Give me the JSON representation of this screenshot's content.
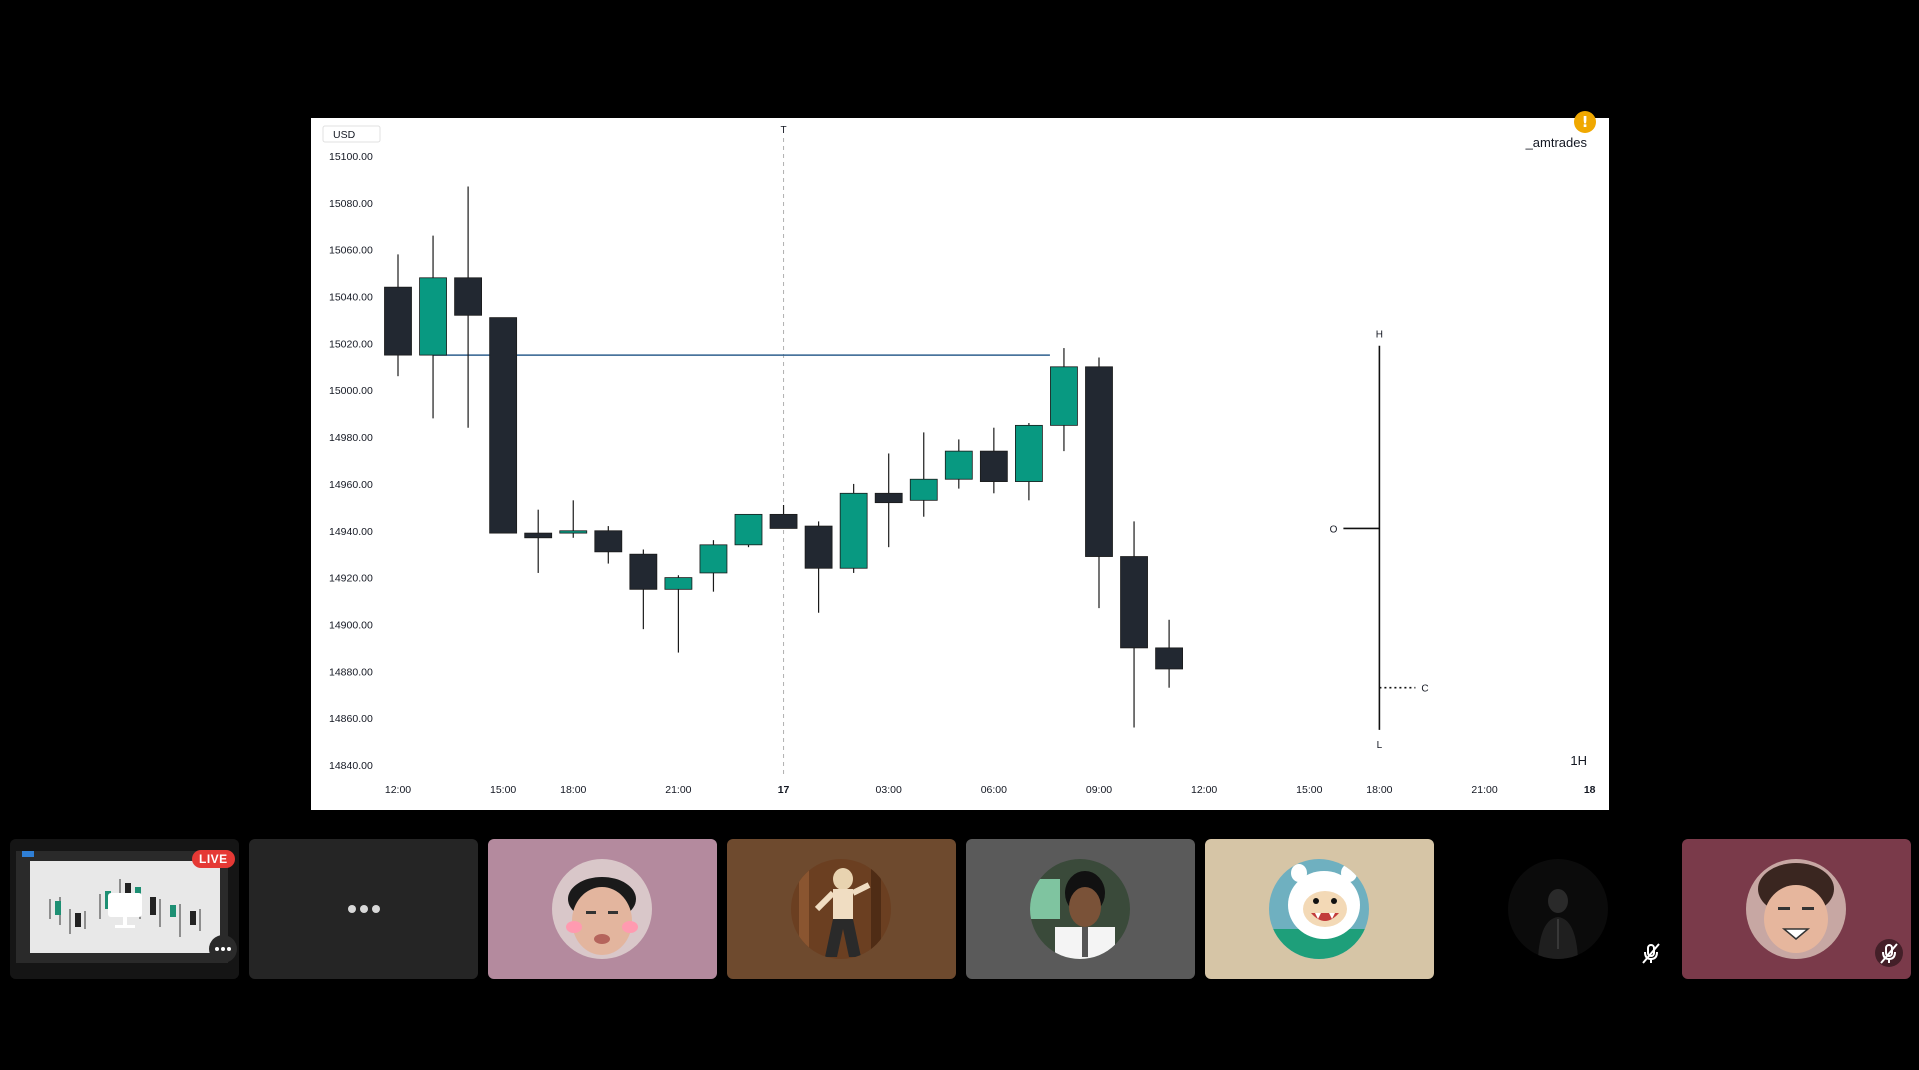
{
  "chart_data": {
    "type": "candlestick",
    "currency": "USD",
    "watermark": "_amtrades",
    "timeframe": "1H",
    "ylim": [
      14840,
      15100
    ],
    "yticks": [
      "15100.00",
      "15080.00",
      "15060.00",
      "15040.00",
      "15020.00",
      "15000.00",
      "14980.00",
      "14960.00",
      "14940.00",
      "14920.00",
      "14900.00",
      "14880.00",
      "14860.00",
      "14840.00"
    ],
    "xticks": [
      {
        "label": "12:00",
        "t": 0,
        "bold": false
      },
      {
        "label": "15:00",
        "t": 3,
        "bold": false
      },
      {
        "label": "18:00",
        "t": 5,
        "bold": false
      },
      {
        "label": "21:00",
        "t": 8,
        "bold": false
      },
      {
        "label": "17",
        "t": 11,
        "bold": true
      },
      {
        "label": "03:00",
        "t": 14,
        "bold": false
      },
      {
        "label": "06:00",
        "t": 17,
        "bold": false
      },
      {
        "label": "09:00",
        "t": 20,
        "bold": false
      },
      {
        "label": "12:00",
        "t": 23,
        "bold": false
      },
      {
        "label": "15:00",
        "t": 26,
        "bold": false
      },
      {
        "label": "18:00",
        "t": 28,
        "bold": false
      },
      {
        "label": "21:00",
        "t": 31,
        "bold": false
      },
      {
        "label": "18",
        "t": 34,
        "bold": true
      }
    ],
    "ohlc": [
      {
        "t": 0,
        "o": 15044,
        "h": 15058,
        "l": 15006,
        "c": 15015
      },
      {
        "t": 1,
        "o": 15015,
        "h": 15066,
        "l": 14988,
        "c": 15048
      },
      {
        "t": 2,
        "o": 15048,
        "h": 15087,
        "l": 14984,
        "c": 15032
      },
      {
        "t": 3,
        "o": 15031,
        "h": 15031,
        "l": 14939,
        "c": 14939
      },
      {
        "t": 4,
        "o": 14939,
        "h": 14949,
        "l": 14922,
        "c": 14937
      },
      {
        "t": 5,
        "o": 14939,
        "h": 14953,
        "l": 14937,
        "c": 14940
      },
      {
        "t": 6,
        "o": 14940,
        "h": 14942,
        "l": 14926,
        "c": 14931
      },
      {
        "t": 7,
        "o": 14930,
        "h": 14932,
        "l": 14898,
        "c": 14915
      },
      {
        "t": 8,
        "o": 14915,
        "h": 14921,
        "l": 14888,
        "c": 14920
      },
      {
        "t": 9,
        "o": 14922,
        "h": 14936,
        "l": 14914,
        "c": 14934
      },
      {
        "t": 10,
        "o": 14934,
        "h": 14947,
        "l": 14933,
        "c": 14947
      },
      {
        "t": 11,
        "o": 14947,
        "h": 14951,
        "l": 14941,
        "c": 14941
      },
      {
        "t": 12,
        "o": 14942,
        "h": 14944,
        "l": 14905,
        "c": 14924
      },
      {
        "t": 13,
        "o": 14924,
        "h": 14960,
        "l": 14922,
        "c": 14956
      },
      {
        "t": 14,
        "o": 14956,
        "h": 14973,
        "l": 14933,
        "c": 14952
      },
      {
        "t": 15,
        "o": 14953,
        "h": 14982,
        "l": 14946,
        "c": 14962
      },
      {
        "t": 16,
        "o": 14962,
        "h": 14979,
        "l": 14958,
        "c": 14974
      },
      {
        "t": 17,
        "o": 14974,
        "h": 14984,
        "l": 14956,
        "c": 14961
      },
      {
        "t": 18,
        "o": 14961,
        "h": 14986,
        "l": 14953,
        "c": 14985
      },
      {
        "t": 19,
        "o": 14985,
        "h": 15018,
        "l": 14974,
        "c": 15010
      },
      {
        "t": 20,
        "o": 15010,
        "h": 15014,
        "l": 14907,
        "c": 14929
      },
      {
        "t": 21,
        "o": 14929,
        "h": 14944,
        "l": 14856,
        "c": 14890
      },
      {
        "t": 22,
        "o": 14890,
        "h": 14902,
        "l": 14873,
        "c": 14881
      }
    ],
    "hline": {
      "value": 15015,
      "from_t": 1,
      "to_t": 18.6,
      "color": "#2e5f8e"
    },
    "vline": {
      "t": 11,
      "label": "T"
    },
    "range_marker": {
      "t": 28,
      "h": 15019,
      "o": 14941,
      "c": 14873,
      "l": 14855,
      "labels": {
        "h": "H",
        "o": "O",
        "c": "C",
        "l": "L"
      }
    },
    "colors": {
      "up": "#089981",
      "down": "#222831",
      "wick": "#1a1a1a"
    }
  },
  "participants": [
    {
      "name": "screen-share",
      "live_label": "LIVE"
    },
    {
      "name": "more"
    },
    {
      "name": "participant-1",
      "bg": "#b48a9e"
    },
    {
      "name": "participant-2",
      "bg": "#6e4a2e"
    },
    {
      "name": "participant-3",
      "bg": "#5a5a5a"
    },
    {
      "name": "participant-4",
      "bg": "#d6c5a6"
    },
    {
      "name": "participant-5",
      "bg": "#000000",
      "muted": true
    },
    {
      "name": "participant-6",
      "bg": "#7a3a4a",
      "muted": true
    }
  ]
}
